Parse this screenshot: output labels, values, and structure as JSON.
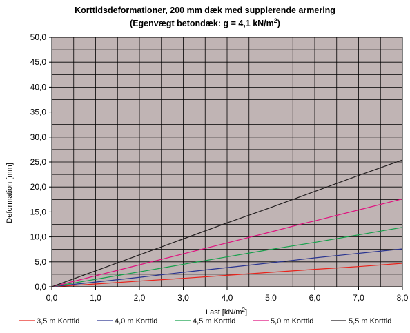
{
  "chart_data": {
    "type": "line",
    "title_line1": "Korttidsdeformationer, 200 mm dæk med supplerende armering",
    "title_line2_main": "(Egenvægt betondæk: g = 4,1 kN/m",
    "title_line2_sup": "2",
    "title_line2_end": ")",
    "xlabel_main": "Last [kN/m",
    "xlabel_sup": "2",
    "xlabel_end": "]",
    "ylabel": "Deformation [mm]",
    "xlim": [
      0,
      8
    ],
    "ylim": [
      0,
      50
    ],
    "x_ticks": [
      "0,0",
      "1,0",
      "2,0",
      "3,0",
      "4,0",
      "5,0",
      "6,0",
      "7,0",
      "8,0"
    ],
    "y_ticks": [
      "0,0",
      "5,0",
      "10,0",
      "15,0",
      "20,0",
      "25,0",
      "30,0",
      "35,0",
      "40,0",
      "45,0",
      "50,0"
    ],
    "x_grid_step": 0.5,
    "y_grid_step": 2.5,
    "plot_background": "#c0b4b4",
    "grid": true,
    "legend_position": "bottom",
    "series": [
      {
        "name": "3,5 m Korttid",
        "color": "#e8231b",
        "points": [
          [
            0,
            0
          ],
          [
            1,
            0.55
          ],
          [
            2,
            1.15
          ],
          [
            3,
            1.7
          ],
          [
            4,
            2.3
          ],
          [
            5,
            2.9
          ],
          [
            5.75,
            3.35
          ],
          [
            6,
            3.5
          ],
          [
            7,
            4.05
          ],
          [
            8,
            4.7
          ]
        ]
      },
      {
        "name": "4,0 m Korttid",
        "color": "#2a3590",
        "points": [
          [
            0,
            0
          ],
          [
            1,
            0.95
          ],
          [
            2,
            1.9
          ],
          [
            3,
            2.9
          ],
          [
            4,
            3.85
          ],
          [
            5,
            4.8
          ],
          [
            5.75,
            5.55
          ],
          [
            6,
            5.8
          ],
          [
            7,
            6.7
          ],
          [
            8,
            7.6
          ]
        ]
      },
      {
        "name": "4,5 m Korttid",
        "color": "#14a04a",
        "points": [
          [
            0,
            0
          ],
          [
            1,
            1.5
          ],
          [
            2,
            3.0
          ],
          [
            3,
            4.5
          ],
          [
            4,
            6.0
          ],
          [
            5,
            7.5
          ],
          [
            6,
            8.9
          ],
          [
            7,
            10.4
          ],
          [
            8,
            11.9
          ]
        ]
      },
      {
        "name": "5,0 m Korttid",
        "color": "#e0117f",
        "points": [
          [
            0,
            0
          ],
          [
            1,
            2.2
          ],
          [
            2,
            4.4
          ],
          [
            3,
            6.6
          ],
          [
            4,
            8.8
          ],
          [
            5,
            11.0
          ],
          [
            5.75,
            12.7
          ],
          [
            6,
            13.2
          ],
          [
            7,
            15.4
          ],
          [
            8,
            17.6
          ]
        ]
      },
      {
        "name": "5,5 m Korttid",
        "color": "#231f20",
        "points": [
          [
            0,
            0
          ],
          [
            1,
            3.2
          ],
          [
            2,
            6.4
          ],
          [
            3,
            9.6
          ],
          [
            4,
            12.8
          ],
          [
            5,
            15.9
          ],
          [
            6,
            19.1
          ],
          [
            7,
            22.3
          ],
          [
            8,
            25.4
          ]
        ]
      }
    ]
  }
}
